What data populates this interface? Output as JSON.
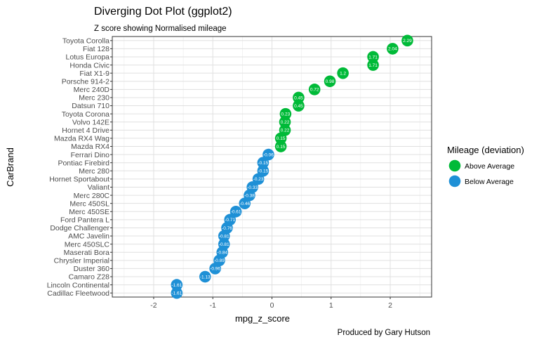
{
  "chart_data": {
    "type": "scatter",
    "title": "Diverging Dot Plot (ggplot2)",
    "subtitle": "Z score showing Normalised mileage",
    "xlabel": "mpg_z_score",
    "ylabel": "CarBrand",
    "caption": "Produced by Gary Hutson",
    "xlim": [
      -2.7,
      2.7
    ],
    "x_ticks": [
      -2,
      -1,
      0,
      1,
      2
    ],
    "grid": true,
    "legend": {
      "title": "Mileage (deviation)",
      "placement": "right",
      "entries": [
        {
          "key": "above",
          "label": "Above Average",
          "color": "#00ba38"
        },
        {
          "key": "below",
          "label": "Below Average",
          "color": "#1e90d6"
        }
      ]
    },
    "points": [
      {
        "car": "Toyota Corolla",
        "z": 2.29,
        "label": "2.29",
        "group": "above"
      },
      {
        "car": "Fiat 128",
        "z": 2.04,
        "label": "2.04",
        "group": "above"
      },
      {
        "car": "Lotus Europa",
        "z": 1.71,
        "label": "1.71",
        "group": "above"
      },
      {
        "car": "Honda Civic",
        "z": 1.71,
        "label": "1.71",
        "group": "above"
      },
      {
        "car": "Fiat X1-9",
        "z": 1.2,
        "label": "1.2",
        "group": "above"
      },
      {
        "car": "Porsche 914-2",
        "z": 0.98,
        "label": "0.98",
        "group": "above"
      },
      {
        "car": "Merc 240D",
        "z": 0.72,
        "label": "0.72",
        "group": "above"
      },
      {
        "car": "Merc 230",
        "z": 0.45,
        "label": "0.45",
        "group": "above"
      },
      {
        "car": "Datsun 710",
        "z": 0.45,
        "label": "0.45",
        "group": "above"
      },
      {
        "car": "Toyota Corona",
        "z": 0.23,
        "label": "0.23",
        "group": "above"
      },
      {
        "car": "Volvo 142E",
        "z": 0.22,
        "label": "0.22",
        "group": "above"
      },
      {
        "car": "Hornet 4 Drive",
        "z": 0.22,
        "label": "0.22",
        "group": "above"
      },
      {
        "car": "Mazda RX4 Wag",
        "z": 0.15,
        "label": "0.15",
        "group": "above"
      },
      {
        "car": "Mazda RX4",
        "z": 0.15,
        "label": "0.15",
        "group": "above"
      },
      {
        "car": "Ferrari Dino",
        "z": -0.06,
        "label": "-0.06",
        "group": "below"
      },
      {
        "car": "Pontiac Firebird",
        "z": -0.15,
        "label": "-0.15",
        "group": "below"
      },
      {
        "car": "Merc 280",
        "z": -0.15,
        "label": "-0.15",
        "group": "below"
      },
      {
        "car": "Hornet Sportabout",
        "z": -0.23,
        "label": "-0.23",
        "group": "below"
      },
      {
        "car": "Valiant",
        "z": -0.33,
        "label": "-0.33",
        "group": "below"
      },
      {
        "car": "Merc 280C",
        "z": -0.38,
        "label": "-0.38",
        "group": "below"
      },
      {
        "car": "Merc 450SL",
        "z": -0.46,
        "label": "-0.46",
        "group": "below"
      },
      {
        "car": "Merc 450SE",
        "z": -0.61,
        "label": "-0.61",
        "group": "below"
      },
      {
        "car": "Ford Pantera L",
        "z": -0.71,
        "label": "-0.71",
        "group": "below"
      },
      {
        "car": "Dodge Challenger",
        "z": -0.76,
        "label": "-0.76",
        "group": "below"
      },
      {
        "car": "AMC Javelin",
        "z": -0.81,
        "label": "-0.81",
        "group": "below"
      },
      {
        "car": "Merc 450SLC",
        "z": -0.81,
        "label": "-0.81",
        "group": "below"
      },
      {
        "car": "Maserati Bora",
        "z": -0.84,
        "label": "-0.84",
        "group": "below"
      },
      {
        "car": "Chrysler Imperial",
        "z": -0.89,
        "label": "-0.89",
        "group": "below"
      },
      {
        "car": "Duster 360",
        "z": -0.96,
        "label": "-0.96",
        "group": "below"
      },
      {
        "car": "Camaro Z28",
        "z": -1.13,
        "label": "-1.13",
        "group": "below"
      },
      {
        "car": "Lincoln Continental",
        "z": -1.61,
        "label": "-1.61",
        "group": "below"
      },
      {
        "car": "Cadillac Fleetwood",
        "z": -1.61,
        "label": "-1.61",
        "group": "below"
      }
    ]
  }
}
